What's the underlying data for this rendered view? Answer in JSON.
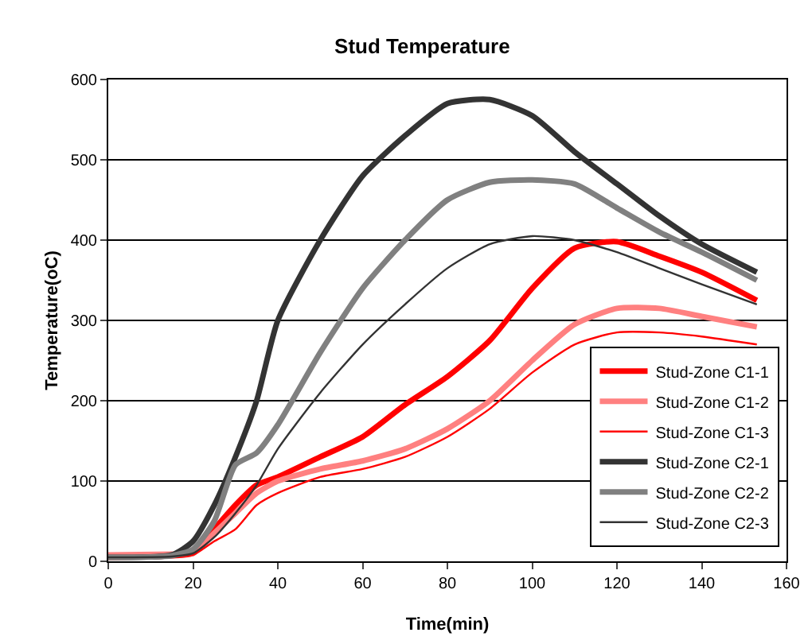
{
  "chart_data": {
    "type": "line",
    "title": "Stud Temperature",
    "xlabel": "Time(min)",
    "ylabel": "Temperature(oC)",
    "x": [
      0,
      15,
      20,
      25,
      30,
      35,
      40,
      50,
      60,
      70,
      80,
      90,
      100,
      110,
      120,
      130,
      140,
      153
    ],
    "xlim": [
      0,
      160
    ],
    "xticks": [
      0,
      20,
      40,
      60,
      80,
      100,
      120,
      140,
      160
    ],
    "ylim": [
      0,
      600
    ],
    "yticks": [
      0,
      100,
      200,
      300,
      400,
      500,
      600
    ],
    "grid": "y",
    "legend": "bottom right",
    "marker": "none",
    "line_style": "solid",
    "series": [
      {
        "name": "Stud-Zone C1-1",
        "color": "#ff0000",
        "values": [
          5,
          7,
          10,
          40,
          70,
          95,
          105,
          130,
          155,
          195,
          230,
          275,
          340,
          390,
          398,
          380,
          360,
          325
        ]
      },
      {
        "name": "Stud-Zone C1-2",
        "color": "#ff8080",
        "values": [
          8,
          9,
          10,
          35,
          60,
          85,
          100,
          115,
          125,
          140,
          165,
          200,
          250,
          295,
          315,
          315,
          305,
          292
        ]
      },
      {
        "name": "Stud-Zone C1-3",
        "color": "#ff0000",
        "values": [
          5,
          6,
          8,
          25,
          40,
          70,
          85,
          105,
          115,
          130,
          155,
          190,
          235,
          270,
          285,
          285,
          280,
          270
        ]
      },
      {
        "name": "Stud-Zone C2-1",
        "color": "#333333",
        "values": [
          5,
          8,
          25,
          70,
          130,
          200,
          300,
          400,
          480,
          530,
          570,
          575,
          555,
          510,
          470,
          430,
          395,
          360
        ]
      },
      {
        "name": "Stud-Zone C2-2",
        "color": "#808080",
        "values": [
          5,
          7,
          15,
          50,
          120,
          135,
          170,
          260,
          340,
          400,
          450,
          472,
          475,
          470,
          440,
          410,
          385,
          350
        ]
      },
      {
        "name": "Stud-Zone C2-3",
        "color": "#333333",
        "values": [
          5,
          6,
          10,
          30,
          60,
          95,
          140,
          210,
          270,
          320,
          365,
          395,
          405,
          400,
          385,
          365,
          345,
          320
        ]
      }
    ]
  }
}
